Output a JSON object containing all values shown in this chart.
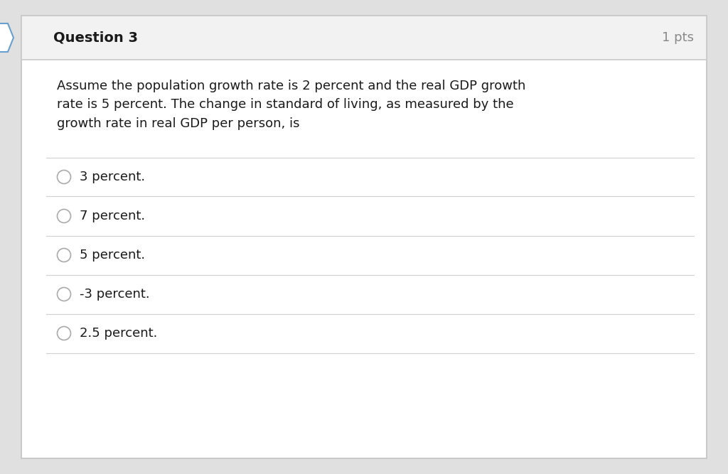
{
  "title": "Question 3",
  "pts": "1 pts",
  "question_text": "Assume the population growth rate is 2 percent and the real GDP growth\nrate is 5 percent. The change in standard of living, as measured by the\ngrowth rate in real GDP per person, is",
  "options": [
    "3 percent.",
    "7 percent.",
    "5 percent.",
    "-3 percent.",
    "2.5 percent."
  ],
  "page_bg": "#e0e0e0",
  "card_bg": "#ffffff",
  "card_border": "#c8c8c8",
  "header_bg": "#f2f2f2",
  "header_border": "#c8c8c8",
  "header_text_color": "#1a1a1a",
  "pts_text_color": "#888888",
  "question_text_color": "#1a1a1a",
  "option_text_color": "#1a1a1a",
  "separator_color": "#d0d0d0",
  "radio_edge_color": "#aaaaaa",
  "bookmark_edge": "#6aa0d0",
  "title_fontsize": 14,
  "pts_fontsize": 13,
  "question_fontsize": 13,
  "option_fontsize": 13
}
